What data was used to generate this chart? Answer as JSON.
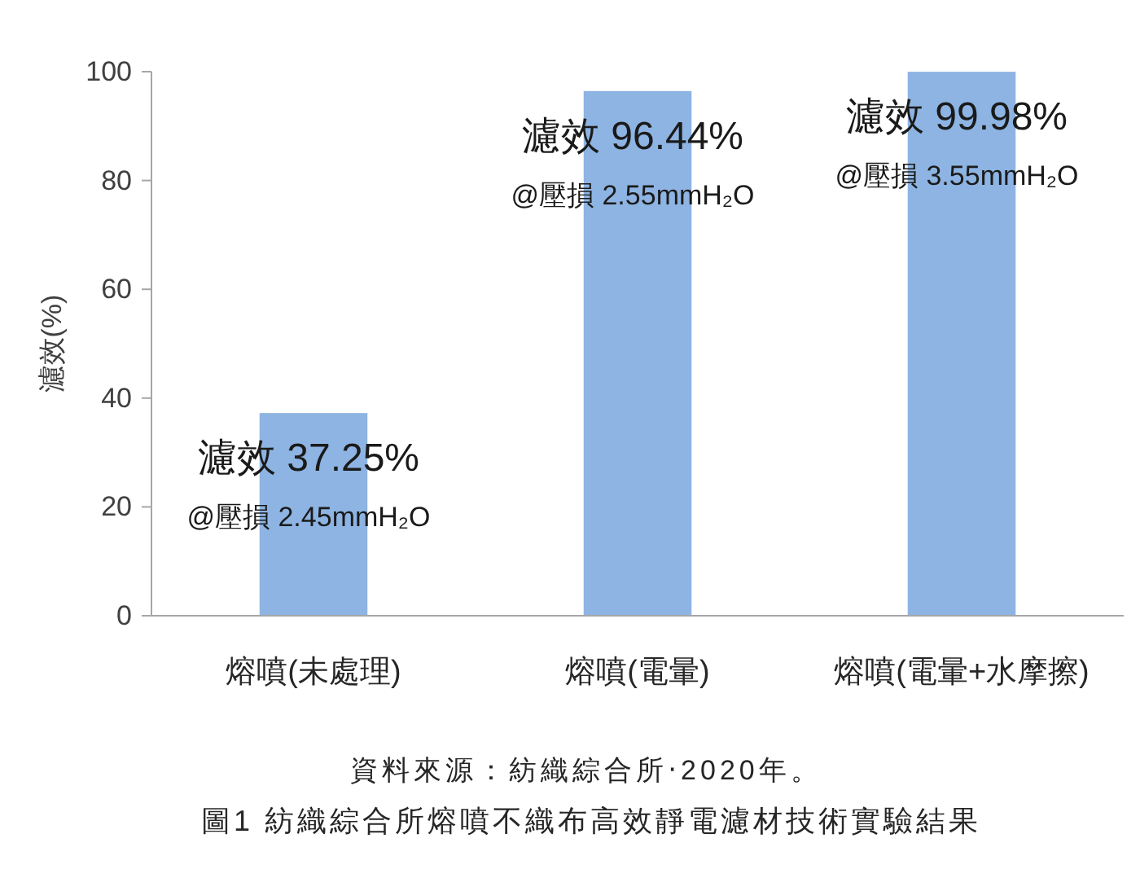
{
  "chart_data": {
    "type": "bar",
    "categories": [
      "熔噴(未處理)",
      "熔噴(電暈)",
      "熔噴(電暈+水摩擦)"
    ],
    "values": [
      37.25,
      96.44,
      99.98
    ],
    "color": "#8db4e2",
    "value_labels": [
      "濾效 37.25%",
      "濾效 96.44%",
      "濾效 99.98%"
    ],
    "ylabel": "濾效(%)",
    "ylim": [
      0,
      100
    ],
    "yticks": [
      0,
      20,
      40,
      60,
      80,
      100
    ],
    "title": "圖1 紡織綜合所熔噴不織布高效靜電濾材技術實驗結果",
    "annotations": [
      "@壓損 2.45mmH₂O",
      "@壓損 2.55mmH₂O",
      "@壓損 3.55mmH₂O",
      "資料來源：紡織綜合所‧2020年。"
    ]
  }
}
